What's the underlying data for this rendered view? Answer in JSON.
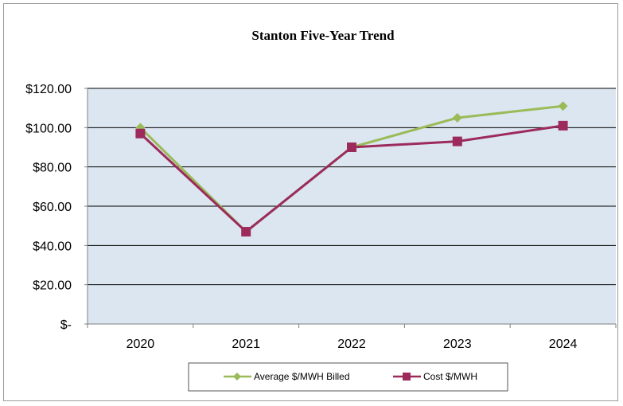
{
  "chart_data": {
    "type": "line",
    "title": "Stanton Five-Year Trend",
    "xlabel": "",
    "ylabel": "",
    "categories": [
      "2020",
      "2021",
      "2022",
      "2023",
      "2024"
    ],
    "ylim": [
      0,
      120
    ],
    "yticks": [
      0,
      20,
      40,
      60,
      80,
      100,
      120
    ],
    "ytick_labels": [
      "$-",
      "$20.00",
      "$40.00",
      "$60.00",
      "$80.00",
      "$100.00",
      "$120.00"
    ],
    "grid": "horizontal",
    "legend_position": "bottom",
    "series": [
      {
        "name": "Average $/MWH Billed",
        "color": "#9bbb59",
        "marker": "diamond",
        "values": [
          100,
          47,
          90,
          105,
          111
        ]
      },
      {
        "name": "Cost $/MWH",
        "color": "#9c2b5c",
        "marker": "square",
        "values": [
          97,
          47,
          90,
          93,
          101
        ]
      }
    ],
    "plot_background": "#dce6f1"
  }
}
